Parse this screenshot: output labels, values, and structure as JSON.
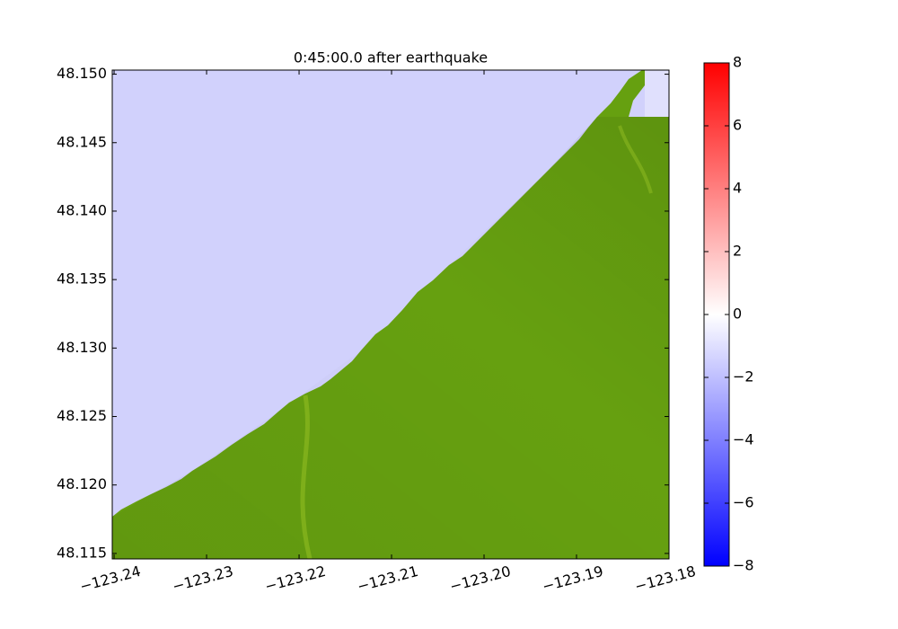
{
  "chart_data": {
    "type": "map",
    "title": "0:45:00.0 after earthquake",
    "xlim": [
      -123.2402,
      -123.18
    ],
    "ylim": [
      48.1146,
      48.1503
    ],
    "xticks": [
      {
        "value": -123.24,
        "label": "−123.24"
      },
      {
        "value": -123.23,
        "label": "−123.23"
      },
      {
        "value": -123.22,
        "label": "−123.22"
      },
      {
        "value": -123.21,
        "label": "−123.21"
      },
      {
        "value": -123.2,
        "label": "−123.20"
      },
      {
        "value": -123.19,
        "label": "−123.19"
      },
      {
        "value": -123.18,
        "label": "−123.18"
      }
    ],
    "yticks": [
      {
        "value": 48.115,
        "label": "48.115"
      },
      {
        "value": 48.12,
        "label": "48.120"
      },
      {
        "value": 48.125,
        "label": "48.125"
      },
      {
        "value": 48.13,
        "label": "48.130"
      },
      {
        "value": 48.135,
        "label": "48.135"
      },
      {
        "value": 48.14,
        "label": "48.140"
      },
      {
        "value": 48.145,
        "label": "48.145"
      },
      {
        "value": 48.15,
        "label": "48.150"
      }
    ],
    "water_color": "#d1d1fc",
    "land_color": "#66a010",
    "colorbar": {
      "lim": [
        -8,
        8
      ],
      "ticks": [
        {
          "value": -8,
          "label": "−8"
        },
        {
          "value": -6,
          "label": "−6"
        },
        {
          "value": -4,
          "label": "−4"
        },
        {
          "value": -2,
          "label": "−2"
        },
        0,
        2,
        4,
        6,
        8
      ],
      "colors": [
        "#0000ff",
        "#ffffff",
        "#ff0000"
      ]
    }
  }
}
